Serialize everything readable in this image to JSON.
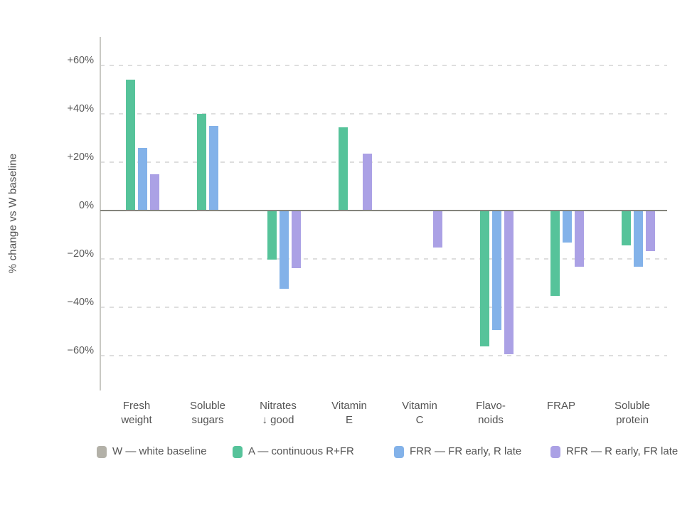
{
  "chart_data": {
    "type": "bar",
    "title": "",
    "ylabel": "% change vs W baseline",
    "ylim": [
      -72,
      70
    ],
    "grid": "horizontal-dashed",
    "legend_position": "bottom",
    "yticks": [
      {
        "value": 60,
        "label": "+60%"
      },
      {
        "value": 40,
        "label": "+40%"
      },
      {
        "value": 20,
        "label": "+20%"
      },
      {
        "value": 0,
        "label": "0%"
      },
      {
        "value": -20,
        "label": "−20%"
      },
      {
        "value": -40,
        "label": "−40%"
      },
      {
        "value": -60,
        "label": "−60%"
      }
    ],
    "categories": [
      {
        "id": "fresh-weight",
        "label_lines": [
          "Fresh",
          "weight"
        ]
      },
      {
        "id": "soluble-sugars",
        "label_lines": [
          "Soluble",
          "sugars"
        ]
      },
      {
        "id": "nitrates",
        "label_lines": [
          "Nitrates",
          "↓ good"
        ]
      },
      {
        "id": "vitamin-e",
        "label_lines": [
          "Vitamin",
          "E"
        ]
      },
      {
        "id": "vitamin-c",
        "label_lines": [
          "Vitamin",
          "C"
        ]
      },
      {
        "id": "flavonoids",
        "label_lines": [
          "Flavo-",
          "noids"
        ]
      },
      {
        "id": "frap",
        "label_lines": [
          "FRAP"
        ]
      },
      {
        "id": "soluble-protein",
        "label_lines": [
          "Soluble",
          "protein"
        ]
      }
    ],
    "series": [
      {
        "key": "W",
        "legend_label": "W — white baseline",
        "color": "#b3b1a8",
        "values": [
          0,
          0,
          0,
          0,
          0,
          0,
          0,
          0
        ]
      },
      {
        "key": "A",
        "legend_label": "A — continuous R+FR",
        "color": "#56c39a",
        "values": [
          54,
          40,
          -20,
          34.5,
          0,
          -56,
          -35,
          -14
        ]
      },
      {
        "key": "FRR",
        "legend_label": "FRR — FR early, R late",
        "color": "#83b2e9",
        "values": [
          26,
          35,
          -32,
          0,
          0,
          -49,
          -13,
          -23
        ]
      },
      {
        "key": "RFR",
        "legend_label": "RFR — R early, FR late",
        "color": "#aba1e5",
        "values": [
          15,
          0,
          -23.5,
          23.5,
          -15,
          -59,
          -23,
          -16.5
        ]
      }
    ]
  }
}
